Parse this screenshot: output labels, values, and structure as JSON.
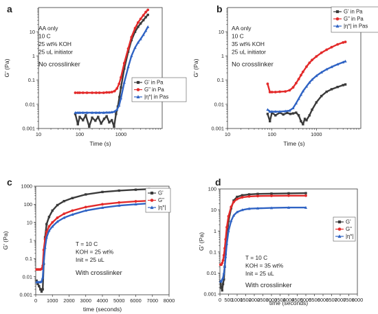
{
  "colors": {
    "G_prime": "#3a3a3a",
    "G_double": "#e32a2a",
    "eta": "#2f63c4"
  },
  "chart_data": [
    {
      "panel": "a",
      "type": "scatter",
      "xscale": "log",
      "yscale": "log",
      "xlim": [
        10,
        10000
      ],
      "ylim": [
        0.001,
        100
      ],
      "xticks": [
        "10",
        "100",
        "1000"
      ],
      "yticks": [
        "0.001",
        "0.01",
        "0.1",
        "1",
        "10"
      ],
      "xlabel": "Time (s)",
      "ylabel": "G' (Pa)",
      "annotation": [
        "AA only",
        "10 C",
        "25 wt% KOH",
        "25 uL initiator"
      ],
      "annotation_big": "No crosslinker",
      "legend": {
        "position": "right-middle",
        "entries": [
          "G' in Pa",
          "G\" in Pa",
          "|η*| in Pas"
        ]
      },
      "series": [
        {
          "name": "G' in Pa",
          "color": "#3a3a3a",
          "x": [
            78,
            90,
            100,
            120,
            140,
            170,
            200,
            240,
            280,
            330,
            390,
            450,
            520,
            600,
            680,
            760,
            840,
            920,
            1000,
            1200,
            1500,
            1800,
            2200,
            2600,
            3000,
            3500,
            4000,
            4500
          ],
          "y": [
            0.004,
            0.0015,
            0.003,
            0.0022,
            0.0035,
            0.0012,
            0.0028,
            0.0021,
            0.003,
            0.0016,
            0.0025,
            0.0032,
            0.0018,
            0.0022,
            0.0012,
            0.004,
            0.008,
            0.02,
            0.05,
            0.3,
            1.5,
            4.5,
            10,
            16,
            22,
            30,
            40,
            50
          ]
        },
        {
          "name": "G\" in Pa",
          "color": "#e32a2a",
          "x": [
            78,
            90,
            100,
            120,
            150,
            200,
            250,
            300,
            380,
            450,
            520,
            600,
            700,
            800,
            900,
            1000,
            1200,
            1500,
            1800,
            2200,
            2600,
            3000,
            3500,
            4000,
            4500
          ],
          "y": [
            0.03,
            0.03,
            0.03,
            0.03,
            0.03,
            0.03,
            0.03,
            0.03,
            0.03,
            0.031,
            0.031,
            0.032,
            0.035,
            0.045,
            0.07,
            0.13,
            0.5,
            2,
            6,
            14,
            24,
            34,
            48,
            65,
            80
          ]
        },
        {
          "name": "|η*| in Pas",
          "color": "#2f63c4",
          "x": [
            78,
            90,
            100,
            120,
            150,
            200,
            250,
            300,
            380,
            450,
            520,
            600,
            700,
            800,
            900,
            1000,
            1200,
            1500,
            1800,
            2200,
            2600,
            3000,
            3500,
            4000,
            4500
          ],
          "y": [
            0.0045,
            0.0045,
            0.0045,
            0.0045,
            0.0045,
            0.0045,
            0.0045,
            0.0045,
            0.0045,
            0.0046,
            0.0046,
            0.0047,
            0.005,
            0.006,
            0.009,
            0.018,
            0.08,
            0.35,
            1,
            2.2,
            3.6,
            5,
            7.5,
            11,
            16
          ]
        }
      ]
    },
    {
      "panel": "b",
      "type": "scatter",
      "xscale": "log",
      "yscale": "log",
      "xlim": [
        10,
        10000
      ],
      "ylim": [
        0.001,
        100
      ],
      "xticks": [
        "10",
        "100",
        "1000"
      ],
      "yticks": [
        "0.001",
        "0.01",
        "0.1",
        "1",
        "10"
      ],
      "xlabel": "Time (s)",
      "ylabel": "G' (Pa)",
      "annotation": [
        "AA only",
        "10 C",
        "35 wt% KOH",
        "25 uL initiator"
      ],
      "annotation_big": "No crosslinker",
      "legend": {
        "position": "top-right",
        "entries": [
          "G' in Pa",
          "G\" in Pa",
          "|η*| in Pas"
        ]
      },
      "series": [
        {
          "name": "G' in Pa",
          "color": "#3a3a3a",
          "x": [
            80,
            90,
            100,
            120,
            150,
            180,
            220,
            260,
            300,
            350,
            400,
            450,
            500,
            550,
            600,
            700,
            800,
            1000,
            1300,
            1700,
            2200,
            3000,
            4000,
            4500
          ],
          "y": [
            0.004,
            0.002,
            0.0045,
            0.0035,
            0.0045,
            0.0038,
            0.0044,
            0.004,
            0.0042,
            0.0045,
            0.0035,
            0.002,
            0.0015,
            0.0025,
            0.0022,
            0.0035,
            0.006,
            0.012,
            0.022,
            0.033,
            0.042,
            0.052,
            0.062,
            0.066
          ]
        },
        {
          "name": "G\" in Pa",
          "color": "#e32a2a",
          "x": [
            80,
            90,
            100,
            120,
            150,
            200,
            250,
            300,
            350,
            400,
            450,
            500,
            600,
            700,
            800,
            1000,
            1300,
            1700,
            2200,
            3000,
            4000,
            4500
          ],
          "y": [
            0.07,
            0.032,
            0.032,
            0.032,
            0.033,
            0.034,
            0.038,
            0.05,
            0.075,
            0.11,
            0.16,
            0.22,
            0.36,
            0.52,
            0.68,
            0.95,
            1.35,
            1.8,
            2.3,
            3,
            3.6,
            3.8
          ]
        },
        {
          "name": "|η*| in Pas",
          "color": "#2f63c4",
          "x": [
            80,
            90,
            100,
            120,
            150,
            200,
            250,
            300,
            350,
            400,
            450,
            500,
            600,
            700,
            800,
            1000,
            1300,
            1700,
            2200,
            3000,
            4000,
            4500
          ],
          "y": [
            0.006,
            0.005,
            0.005,
            0.005,
            0.005,
            0.0052,
            0.0055,
            0.007,
            0.011,
            0.017,
            0.025,
            0.035,
            0.055,
            0.08,
            0.105,
            0.15,
            0.21,
            0.28,
            0.35,
            0.45,
            0.55,
            0.6
          ]
        }
      ]
    },
    {
      "panel": "c",
      "type": "scatter",
      "xscale": "linear",
      "yscale": "log",
      "xlim": [
        0,
        8000
      ],
      "ylim": [
        0.001,
        1000
      ],
      "xticks": [
        "0",
        "1000",
        "2000",
        "3000",
        "4000",
        "5000",
        "6000",
        "7000",
        "8000"
      ],
      "yticks": [
        "0.001",
        "0.01",
        "0.1",
        "1",
        "10",
        "100",
        "1000"
      ],
      "xlabel": "time (seconds)",
      "ylabel": "G' (Pa)",
      "annotation": [
        "T = 10 C",
        "KOH = 25 wt%",
        "Init = 25 uL"
      ],
      "annotation_big": "With crosslinker",
      "legend": {
        "position": "top-right",
        "entries": [
          "G'",
          "G\"",
          "|η*|"
        ]
      },
      "series": [
        {
          "name": "G'",
          "color": "#3a3a3a",
          "x": [
            50,
            120,
            200,
            280,
            350,
            420,
            480,
            560,
            650,
            800,
            1000,
            1300,
            1700,
            2200,
            3000,
            4000,
            5000,
            6000,
            6800
          ],
          "y": [
            0.006,
            0.004,
            0.003,
            0.002,
            0.0015,
            0.002,
            0.05,
            1.5,
            8,
            20,
            45,
            90,
            150,
            220,
            350,
            480,
            570,
            640,
            690
          ]
        },
        {
          "name": "G\"",
          "color": "#e32a2a",
          "x": [
            50,
            120,
            200,
            280,
            350,
            420,
            480,
            560,
            650,
            800,
            1000,
            1300,
            1700,
            2200,
            3000,
            4000,
            5000,
            6000,
            7000,
            7800
          ],
          "y": [
            0.025,
            0.025,
            0.025,
            0.025,
            0.027,
            0.04,
            0.3,
            1.2,
            3,
            6,
            10,
            18,
            30,
            45,
            70,
            100,
            125,
            145,
            160,
            170
          ]
        },
        {
          "name": "|η*|",
          "color": "#2f63c4",
          "x": [
            50,
            120,
            200,
            280,
            350,
            420,
            480,
            560,
            650,
            800,
            1000,
            1300,
            1700,
            2200,
            3000,
            4000,
            5000,
            6000,
            7000,
            7800
          ],
          "y": [
            0.005,
            0.005,
            0.005,
            0.005,
            0.0055,
            0.009,
            0.06,
            0.4,
            1.5,
            3.5,
            6,
            11,
            18,
            27,
            45,
            65,
            85,
            100,
            115,
            125
          ]
        }
      ]
    },
    {
      "panel": "d",
      "type": "scatter",
      "xscale": "linear",
      "yscale": "log",
      "xlim": [
        0,
        8000
      ],
      "ylim": [
        0.001,
        100
      ],
      "xticks": [
        "0",
        "500",
        "1000",
        "1500",
        "2000",
        "2500",
        "3000",
        "3500",
        "4000",
        "4500",
        "5000",
        "5500",
        "6000",
        "6500",
        "7000",
        "7500",
        "8000"
      ],
      "yticks": [
        "0.001",
        "0.01",
        "0.1",
        "1",
        "10",
        "100"
      ],
      "xlabel": "time (seconds)",
      "ylabel": "G' (Pa)",
      "annotation": [
        "T = 10 C",
        "KOH = 35 wt%",
        "Init = 25 uL"
      ],
      "annotation_big": "With crosslinker",
      "legend": {
        "position": "right-middle",
        "entries": [
          "G'",
          "G\"",
          "|η*|"
        ]
      },
      "series": [
        {
          "name": "G'",
          "color": "#3a3a3a",
          "x": [
            30,
            80,
            130,
            180,
            230,
            280,
            330,
            400,
            500,
            650,
            800,
            1000,
            1300,
            1700,
            2200,
            3000,
            4000,
            5000
          ],
          "y": [
            0.004,
            0.002,
            0.0015,
            0.003,
            0.005,
            0.02,
            0.08,
            0.5,
            3,
            12,
            28,
            42,
            50,
            55,
            58,
            60,
            62,
            63
          ]
        },
        {
          "name": "G\"",
          "color": "#e32a2a",
          "x": [
            30,
            80,
            130,
            180,
            230,
            280,
            330,
            400,
            500,
            650,
            800,
            1000,
            1300,
            1700,
            2200,
            3000,
            4000,
            5000
          ],
          "y": [
            0.025,
            0.025,
            0.03,
            0.04,
            0.07,
            0.15,
            0.4,
            1.5,
            5,
            14,
            24,
            33,
            40,
            44,
            46,
            47,
            48,
            48
          ]
        },
        {
          "name": "|η*|",
          "color": "#2f63c4",
          "x": [
            30,
            80,
            130,
            180,
            230,
            280,
            330,
            400,
            500,
            650,
            800,
            1000,
            1300,
            1700,
            2200,
            3000,
            4000,
            5000
          ],
          "y": [
            0.004,
            0.004,
            0.005,
            0.006,
            0.01,
            0.02,
            0.06,
            0.25,
            1,
            3,
            5.5,
            8,
            10,
            11.5,
            12,
            12.5,
            13,
            13
          ]
        }
      ]
    }
  ]
}
